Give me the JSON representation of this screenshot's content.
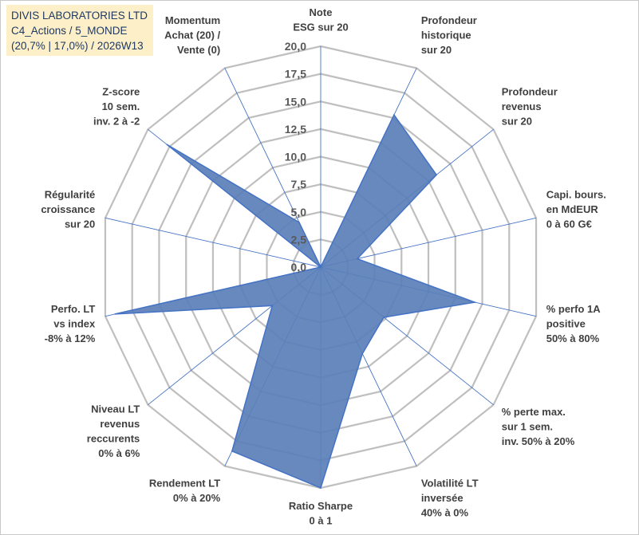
{
  "title_box": {
    "line1": "DIVIS LABORATORIES LTD",
    "line2": "C4_Actions / 5_MONDE",
    "line3": "(20,7% | 17,0%) / 2026W13"
  },
  "colors": {
    "fill": "#5a7fb8",
    "stroke": "#4472c4",
    "grid": "#bfbfbf",
    "title_bg": "#fdf0c8",
    "title_text": "#1f3864"
  },
  "chart_data": {
    "type": "radar",
    "title": "DIVIS LABORATORIES LTD",
    "rlim": [
      0,
      20
    ],
    "tick_step": 2.5,
    "tick_labels": [
      "0,0",
      "2,5",
      "5,0",
      "7,5",
      "10,0",
      "12,5",
      "15,0",
      "17,5",
      "20,0"
    ],
    "categories": [
      [
        "Note",
        "ESG sur 20"
      ],
      [
        "Profondeur",
        "historique",
        "sur 20"
      ],
      [
        "Profondeur",
        "revenus",
        "sur 20"
      ],
      [
        "Capi. bours.",
        "en MdEUR",
        "0 à 60 G€"
      ],
      [
        "% perfo 1A",
        "positive",
        "50% à 80%"
      ],
      [
        "% perte max.",
        "sur 1 sem.",
        "inv. 50% à 20%"
      ],
      [
        "Volatilité LT",
        "inversée",
        "40% à 0%"
      ],
      [
        "Ratio Sharpe",
        "0 à 1"
      ],
      [
        "Rendement LT",
        "0% à 20%"
      ],
      [
        "Niveau LT",
        "revenus",
        "reccurents",
        "0% à 6%"
      ],
      [
        "Perfo. LT",
        "vs index",
        "-8% à 12%"
      ],
      [
        "Régularité",
        "croissance",
        "sur 20"
      ],
      [
        "Z-score",
        "10 sem.",
        "inv. 2 à -2"
      ],
      [
        "Momentum",
        "Achat (20) /",
        "Vente (0)"
      ]
    ],
    "series": [
      {
        "name": "DIVIS LABORATORIES LTD",
        "values": [
          0,
          15.3,
          13.4,
          3.4,
          14.3,
          7.3,
          8.7,
          20.0,
          18.5,
          5.6,
          19.1,
          0,
          17.8,
          4.5
        ]
      }
    ]
  }
}
